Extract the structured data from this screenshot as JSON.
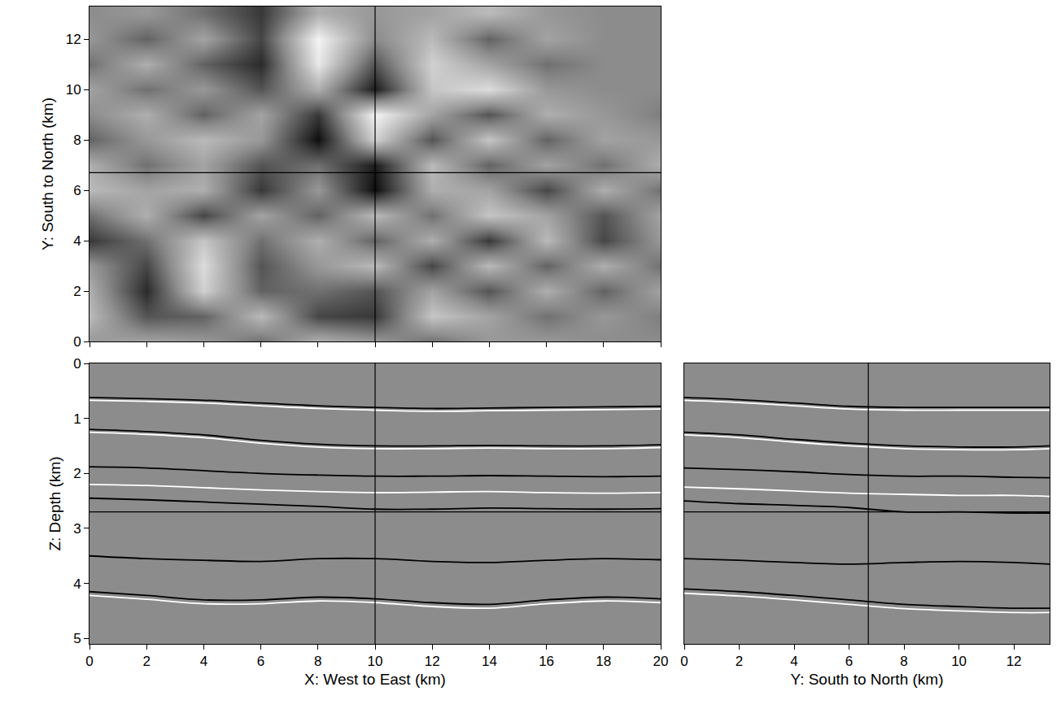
{
  "chart_data": [
    {
      "type": "heatmap",
      "x_label": null,
      "y_label": "Y: South to North (km)",
      "x": [
        0,
        2,
        4,
        6,
        8,
        10,
        12,
        14,
        16,
        18,
        20
      ],
      "y": [
        0,
        1,
        2,
        3,
        4,
        5,
        6,
        7,
        8,
        9,
        10,
        11,
        12,
        13
      ],
      "cells": [
        [
          0.1,
          0.2,
          0.1,
          -0.2,
          0.3,
          0.1,
          -0.2,
          0.1,
          0.1,
          0,
          0
        ],
        [
          0.4,
          -0.4,
          -0.3,
          0.4,
          -0.5,
          -0.6,
          0.5,
          0.2,
          -0.2,
          0.1,
          -0.1
        ],
        [
          0.3,
          -0.7,
          0.6,
          -0.3,
          -0.2,
          -0.4,
          0.2,
          -0.4,
          0.3,
          -0.3,
          0.2
        ],
        [
          0.1,
          -0.5,
          0.7,
          -0.4,
          0.1,
          0.4,
          -0.5,
          0.4,
          -0.3,
          0.3,
          -0.2
        ],
        [
          -0.6,
          -0.2,
          0.5,
          -0.2,
          0.3,
          -0.3,
          0.3,
          -0.6,
          0.4,
          -0.5,
          0.1
        ],
        [
          -0.2,
          0.3,
          -0.5,
          0.2,
          -0.3,
          0.4,
          -0.2,
          0.5,
          0.2,
          -0.4,
          0.2
        ],
        [
          0.4,
          0.2,
          0.3,
          -0.6,
          0.1,
          -0.9,
          0.3,
          0.2,
          -0.5,
          0.3,
          -0.2
        ],
        [
          0.3,
          -0.2,
          0.2,
          -0.4,
          -0.2,
          -0.8,
          0.4,
          -0.3,
          0.2,
          -0.2,
          0.3
        ],
        [
          -0.3,
          0.1,
          0.4,
          0.1,
          -0.9,
          0.6,
          -0.4,
          0.5,
          -0.3,
          0.2,
          0.1
        ],
        [
          0,
          0.3,
          -0.3,
          0.2,
          -0.6,
          0.9,
          0.2,
          -0.4,
          0.3,
          0.1,
          -0.1
        ],
        [
          0.2,
          -0.2,
          0.1,
          -0.4,
          0.3,
          -0.8,
          0.5,
          0.7,
          0.1,
          0,
          0
        ],
        [
          -0.2,
          0.3,
          -0.3,
          -0.7,
          0.8,
          -0.4,
          0.6,
          0.2,
          -0.2,
          0,
          0
        ],
        [
          0.1,
          -0.3,
          0.2,
          -0.5,
          0.9,
          0,
          0.4,
          -0.3,
          0.2,
          0,
          0
        ],
        [
          0,
          0.1,
          -0.2,
          -0.6,
          0.3,
          0.1,
          0.2,
          0.4,
          0.1,
          0,
          0
        ]
      ],
      "zlim": [
        -1,
        1
      ],
      "xlim": [
        0,
        20
      ],
      "ylim": [
        0,
        13.3
      ],
      "xticks": [
        0,
        2,
        4,
        6,
        8,
        10,
        12,
        14,
        16,
        18,
        20
      ],
      "yticks": [
        0,
        2,
        4,
        6,
        8,
        10,
        12
      ],
      "tick_labels": "y",
      "crosshair": {
        "x": 10,
        "y": 6.7
      }
    },
    {
      "type": "line",
      "x_label": "X: West to East (km)",
      "y_label": "Z: Depth (km)",
      "x": [
        0,
        2,
        4,
        6,
        8,
        10,
        12,
        14,
        16,
        18,
        20
      ],
      "series": [
        {
          "color": "black",
          "values": [
            0.62,
            0.64,
            0.67,
            0.72,
            0.77,
            0.8,
            0.82,
            0.81,
            0.8,
            0.79,
            0.78
          ]
        },
        {
          "color": "white",
          "values": [
            0.67,
            0.69,
            0.72,
            0.77,
            0.82,
            0.85,
            0.87,
            0.86,
            0.85,
            0.84,
            0.83
          ]
        },
        {
          "color": "black",
          "values": [
            1.2,
            1.24,
            1.3,
            1.4,
            1.47,
            1.5,
            1.5,
            1.49,
            1.5,
            1.5,
            1.48
          ]
        },
        {
          "color": "white",
          "values": [
            1.25,
            1.29,
            1.35,
            1.45,
            1.52,
            1.55,
            1.55,
            1.54,
            1.55,
            1.55,
            1.53
          ]
        },
        {
          "color": "black",
          "values": [
            1.88,
            1.9,
            1.95,
            2.0,
            2.03,
            2.05,
            2.05,
            2.04,
            2.05,
            2.06,
            2.05
          ]
        },
        {
          "color": "white",
          "values": [
            2.2,
            2.22,
            2.26,
            2.3,
            2.33,
            2.35,
            2.34,
            2.33,
            2.35,
            2.36,
            2.35
          ]
        },
        {
          "color": "black",
          "values": [
            2.45,
            2.48,
            2.52,
            2.56,
            2.6,
            2.65,
            2.65,
            2.63,
            2.64,
            2.65,
            2.64
          ]
        },
        {
          "color": "black",
          "values": [
            3.5,
            3.55,
            3.58,
            3.6,
            3.55,
            3.55,
            3.6,
            3.62,
            3.58,
            3.55,
            3.57
          ]
        },
        {
          "color": "black",
          "values": [
            4.15,
            4.22,
            4.3,
            4.3,
            4.25,
            4.28,
            4.35,
            4.38,
            4.3,
            4.25,
            4.28
          ]
        },
        {
          "color": "white",
          "values": [
            4.22,
            4.29,
            4.37,
            4.37,
            4.32,
            4.35,
            4.42,
            4.45,
            4.37,
            4.32,
            4.35
          ]
        }
      ],
      "xlim": [
        0,
        20
      ],
      "ylim": [
        5.1,
        0
      ],
      "xticks": [
        0,
        2,
        4,
        6,
        8,
        10,
        12,
        14,
        16,
        18,
        20
      ],
      "yticks": [
        0,
        1,
        2,
        3,
        4,
        5
      ],
      "crosshair": {
        "x": 10,
        "y": 2.7
      }
    },
    {
      "type": "line",
      "x_label": "Y: South to North (km)",
      "y_label": null,
      "x": [
        0,
        2,
        4,
        6,
        8,
        10,
        12,
        13.3
      ],
      "series": [
        {
          "color": "black",
          "values": [
            0.62,
            0.66,
            0.72,
            0.78,
            0.8,
            0.8,
            0.8,
            0.8
          ]
        },
        {
          "color": "white",
          "values": [
            0.67,
            0.71,
            0.77,
            0.83,
            0.85,
            0.85,
            0.85,
            0.85
          ]
        },
        {
          "color": "black",
          "values": [
            1.25,
            1.3,
            1.38,
            1.45,
            1.5,
            1.52,
            1.52,
            1.5
          ]
        },
        {
          "color": "white",
          "values": [
            1.3,
            1.35,
            1.43,
            1.5,
            1.55,
            1.57,
            1.57,
            1.55
          ]
        },
        {
          "color": "black",
          "values": [
            1.9,
            1.93,
            1.97,
            2.02,
            2.05,
            2.05,
            2.07,
            2.08
          ]
        },
        {
          "color": "white",
          "values": [
            2.25,
            2.28,
            2.32,
            2.36,
            2.38,
            2.4,
            2.4,
            2.42
          ]
        },
        {
          "color": "black",
          "values": [
            2.5,
            2.55,
            2.58,
            2.62,
            2.7,
            2.7,
            2.72,
            2.72
          ]
        },
        {
          "color": "black",
          "values": [
            3.55,
            3.58,
            3.62,
            3.65,
            3.62,
            3.6,
            3.62,
            3.65
          ]
        },
        {
          "color": "black",
          "values": [
            4.1,
            4.15,
            4.22,
            4.3,
            4.38,
            4.42,
            4.45,
            4.45
          ]
        },
        {
          "color": "white",
          "values": [
            4.18,
            4.23,
            4.3,
            4.38,
            4.46,
            4.5,
            4.53,
            4.53
          ]
        }
      ],
      "xlim": [
        0,
        13.3
      ],
      "ylim": [
        5.1,
        0
      ],
      "xticks": [
        0,
        2,
        4,
        6,
        8,
        10,
        12
      ],
      "yticks": [
        0,
        1,
        2,
        3,
        4,
        5
      ],
      "tick_labels": "x",
      "crosshair": {
        "x": 6.7,
        "y": 2.7
      }
    }
  ]
}
